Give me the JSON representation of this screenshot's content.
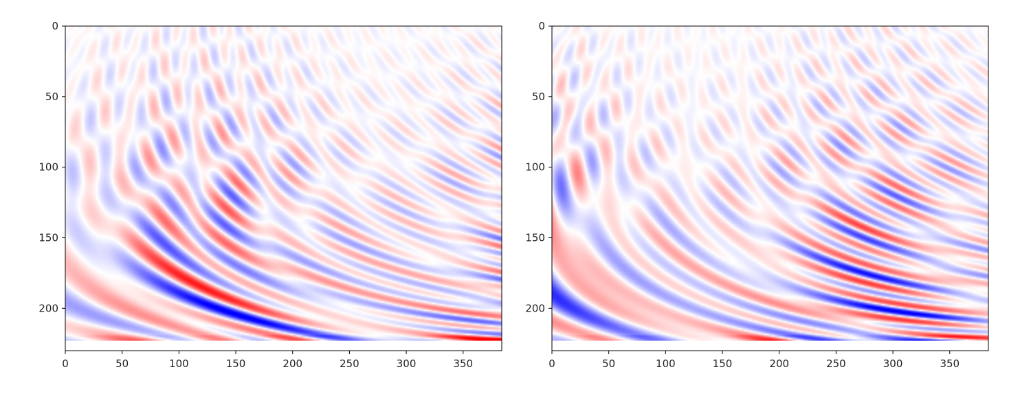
{
  "figure": {
    "background": "#ffffff",
    "colormap": "bwr",
    "colors": {
      "negative": "#0000ff",
      "zero": "#ffffff",
      "positive": "#ff0000",
      "axis": "#000000"
    }
  },
  "chart_data": [
    {
      "type": "heatmap",
      "title": "",
      "xlabel": "",
      "ylabel": "",
      "xlim": [
        0,
        384
      ],
      "ylim": [
        230,
        0
      ],
      "data_rows": 223,
      "y_inverted": true,
      "xticks": [
        0,
        50,
        100,
        150,
        200,
        250,
        300,
        350
      ],
      "yticks": [
        0,
        50,
        100,
        150,
        200
      ],
      "xtick_labels": [
        "0",
        "50",
        "100",
        "150",
        "200",
        "250",
        "300",
        "350"
      ],
      "ytick_labels": [
        "0",
        "50",
        "100",
        "150",
        "200"
      ],
      "colorbar": false,
      "pattern": "oscillatory wavefield; fine vertical stripes near top, broad alternating red/blue lobes toward bottom",
      "value_range": [
        -1,
        1
      ],
      "seed": 7
    },
    {
      "type": "heatmap",
      "title": "",
      "xlabel": "",
      "ylabel": "",
      "xlim": [
        0,
        384
      ],
      "ylim": [
        230,
        0
      ],
      "data_rows": 223,
      "y_inverted": true,
      "xticks": [
        0,
        50,
        100,
        150,
        200,
        250,
        300,
        350
      ],
      "yticks": [
        0,
        50,
        100,
        150,
        200
      ],
      "xtick_labels": [
        "0",
        "50",
        "100",
        "150",
        "200",
        "250",
        "300",
        "350"
      ],
      "ytick_labels": [
        "0",
        "50",
        "100",
        "150",
        "200"
      ],
      "colorbar": false,
      "pattern": "oscillatory wavefield; fine vertical stripes near top, broad alternating red/blue lobes toward bottom",
      "value_range": [
        -1,
        1
      ],
      "seed": 13
    }
  ]
}
